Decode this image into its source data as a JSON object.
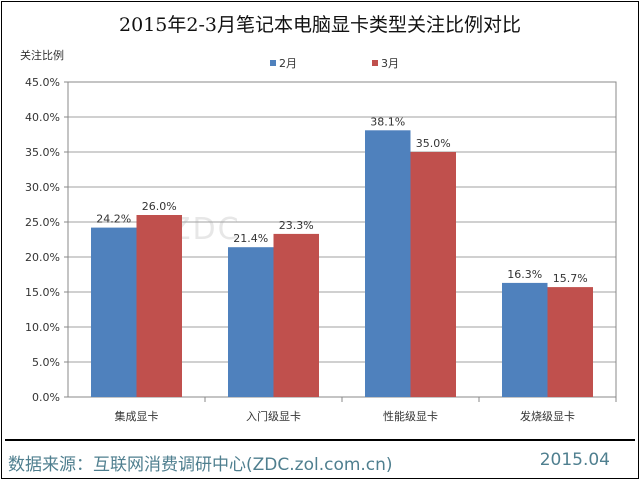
{
  "chart_data": {
    "type": "bar",
    "title": "2015年2-3月笔记本电脑显卡类型关注比例对比",
    "ylabel": "关注比例",
    "xlabel": "",
    "categories": [
      "集成显卡",
      "入门级显卡",
      "性能级显卡",
      "发烧级显卡"
    ],
    "series": [
      {
        "name": "2月",
        "values": [
          24.2,
          21.4,
          38.1,
          16.3
        ],
        "labels": [
          "24.2%",
          "21.4%",
          "38.1%",
          "16.3%"
        ],
        "color": "#4f81bd"
      },
      {
        "name": "3月",
        "values": [
          26.0,
          23.3,
          35.0,
          15.7
        ],
        "labels": [
          "26.0%",
          "23.3%",
          "35.0%",
          "15.7%"
        ],
        "color": "#c0504d"
      }
    ],
    "ylim": [
      0,
      45
    ],
    "yticks": [
      "0.0%",
      "5.0%",
      "10.0%",
      "15.0%",
      "20.0%",
      "25.0%",
      "30.0%",
      "35.0%",
      "40.0%",
      "45.0%"
    ],
    "grid": true,
    "legend": "top"
  },
  "footer": {
    "source": "数据来源：互联网消费调研中心(ZDC.zol.com.cn)",
    "date": "2015.04"
  },
  "watermark": {
    "logo": "ZDC 互联网消费调研中心",
    "url": "zdc.zol.com.cn"
  }
}
